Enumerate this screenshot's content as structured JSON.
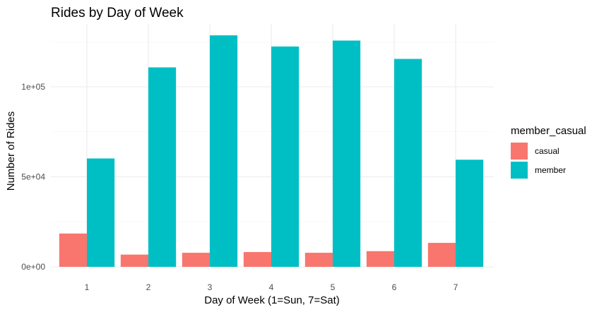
{
  "chart_data": {
    "type": "bar",
    "title": "Rides by Day of Week",
    "xlabel": "Day of Week (1=Sun, 7=Sat)",
    "ylabel": "Number of Rides",
    "categories": [
      "1",
      "2",
      "3",
      "4",
      "5",
      "6",
      "7"
    ],
    "series": [
      {
        "name": "casual",
        "color": "#F8766D",
        "values": [
          18500,
          6800,
          7800,
          8200,
          7800,
          8700,
          13300
        ]
      },
      {
        "name": "member",
        "color": "#00BFC4",
        "values": [
          60200,
          110800,
          128600,
          122400,
          125700,
          115500,
          59500
        ]
      }
    ],
    "ylim": [
      0,
      135000
    ],
    "y_ticks": [
      0,
      50000,
      100000
    ],
    "y_tick_labels": [
      "0e+00",
      "5e+04",
      "1e+05"
    ],
    "legend_title": "member_casual",
    "legend_position": "right",
    "grid": true,
    "theme": "minimal"
  }
}
